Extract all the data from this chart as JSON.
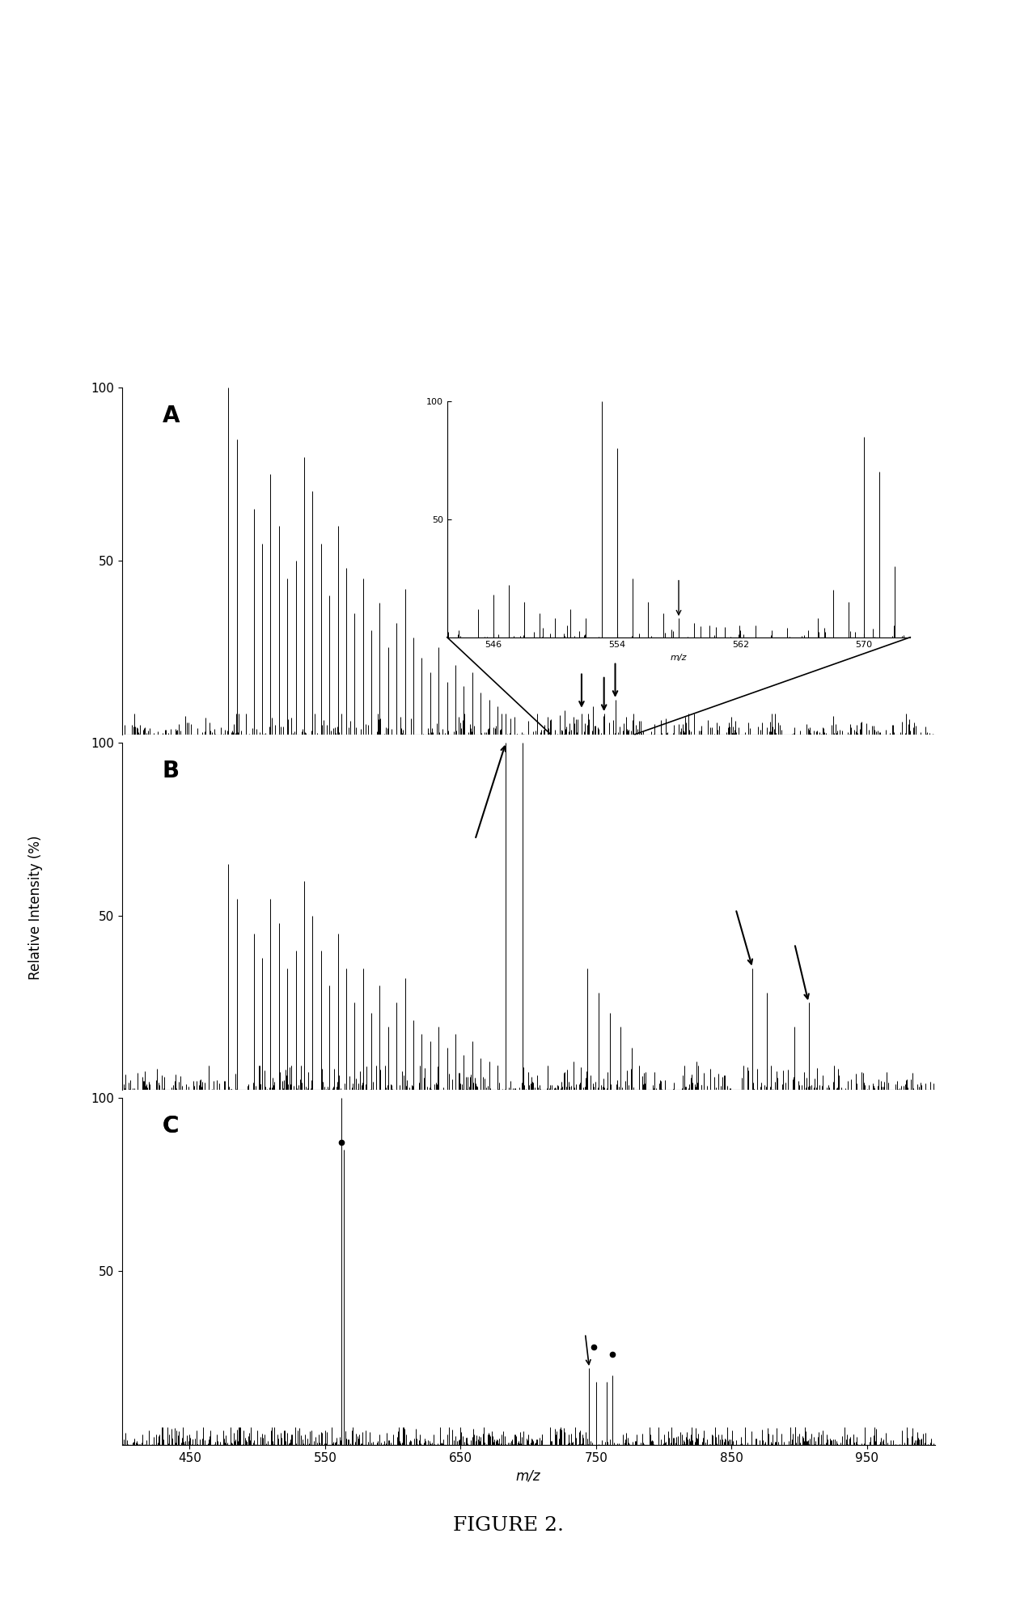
{
  "figure_title": "FIGURE 2.",
  "panels": [
    "A",
    "B",
    "C"
  ],
  "panel_A": {
    "xlim": [
      390,
      680
    ],
    "ylim": [
      0,
      100
    ],
    "yticks": [
      50,
      100
    ],
    "yticklabels": [
      "50",
      "100"
    ],
    "label": "A",
    "inset": {
      "xlim": [
        543,
        573
      ],
      "ylim": [
        0,
        100
      ],
      "yticks": [
        50,
        100
      ],
      "yticklabels": [
        "50",
        "100"
      ],
      "xticks": [
        546,
        554,
        562,
        570
      ],
      "xticklabels": [
        "546",
        "554",
        "562",
        "570"
      ],
      "xlabel": "m/z"
    }
  },
  "panel_B": {
    "xlim": [
      390,
      680
    ],
    "ylim": [
      0,
      100
    ],
    "yticks": [
      50,
      100
    ],
    "yticklabels": [
      "50",
      "100"
    ],
    "label": "B"
  },
  "panel_C": {
    "xlim": [
      400,
      1000
    ],
    "ylim": [
      0,
      100
    ],
    "yticks": [
      50,
      100
    ],
    "yticklabels": [
      "50",
      "100"
    ],
    "label": "C",
    "xlabel": "m/z",
    "xticks": [
      450,
      550,
      650,
      750,
      850,
      950
    ],
    "xticklabels": [
      "450",
      "550",
      "650",
      "750",
      "850",
      "950"
    ]
  },
  "ylabel": "Relative Intensity (%)",
  "background_color": "#ffffff",
  "line_color": "#000000"
}
